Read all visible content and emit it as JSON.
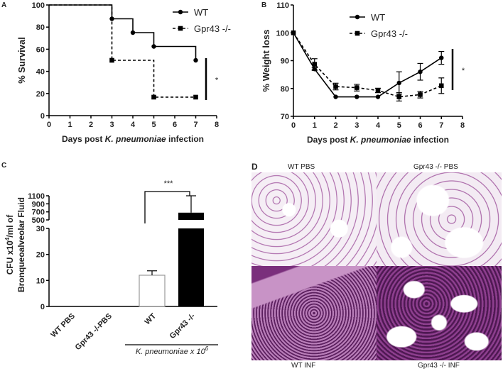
{
  "chart_data": [
    {
      "panel": "A",
      "type": "line",
      "step": true,
      "ylabel": "% Survival",
      "xlabel_parts": [
        "Days post ",
        "K. pneumoniae",
        " infection"
      ],
      "xlim": [
        0,
        8
      ],
      "ylim": [
        0,
        100
      ],
      "xticks": [
        0,
        1,
        2,
        3,
        4,
        5,
        6,
        7,
        8
      ],
      "yticks": [
        0,
        20,
        40,
        60,
        80,
        100
      ],
      "legend": "top-right",
      "significance": "*",
      "series": [
        {
          "name": "WT",
          "style": "solid",
          "marker": "circle",
          "x": [
            0,
            3,
            4,
            5,
            7
          ],
          "y": [
            100,
            87.5,
            75,
            62.5,
            50
          ],
          "markers_x": [
            3,
            4,
            5,
            7
          ]
        },
        {
          "name": "Gpr43 -/-",
          "style": "dashed",
          "marker": "square",
          "x": [
            0,
            3,
            5,
            7
          ],
          "y": [
            100,
            50,
            16.7,
            16.7
          ],
          "markers_x": [
            3,
            5,
            7
          ]
        }
      ]
    },
    {
      "panel": "B",
      "type": "line",
      "ylabel": "% Weight loss",
      "xlabel_parts": [
        "Days post ",
        "K. pneumoniae",
        " infection"
      ],
      "xlim": [
        0,
        8
      ],
      "ylim": [
        70,
        110
      ],
      "xticks": [
        0,
        1,
        2,
        3,
        4,
        5,
        6,
        7,
        8
      ],
      "yticks": [
        70,
        80,
        90,
        100,
        110
      ],
      "legend": "top",
      "significance": "*",
      "series": [
        {
          "name": "WT",
          "style": "solid",
          "marker": "circle",
          "x": [
            0,
            1,
            2,
            3,
            4,
            5,
            6,
            7
          ],
          "y": [
            100,
            87,
            77,
            77,
            77,
            82,
            86,
            91
          ],
          "err": [
            0,
            0.5,
            0,
            0,
            0,
            4,
            3,
            2.3
          ]
        },
        {
          "name": "Gpr43 -/-",
          "style": "dashed",
          "marker": "square",
          "x": [
            0,
            1,
            2,
            3,
            4,
            5,
            6,
            7
          ],
          "y": [
            100,
            88.7,
            80.7,
            80.3,
            79.3,
            77,
            77.8,
            81
          ],
          "err": [
            0,
            2,
            1.2,
            1.2,
            0.8,
            1.5,
            1.2,
            2.8
          ]
        }
      ]
    },
    {
      "panel": "C",
      "type": "bar",
      "broken_axis": true,
      "ylabel_line1": "CFU x10",
      "ylabel_sup": "4",
      "ylabel_rest": "/ml of",
      "ylabel_line2": "Bronqueoalveolar Fluid",
      "categories": [
        "WT PBS",
        "Gpr43 -/-PBS",
        "WT",
        "Gpr43 -/-"
      ],
      "values": [
        0,
        0,
        12,
        680
      ],
      "err": [
        0,
        0,
        1.7,
        420
      ],
      "colors": [
        "#ffffff",
        "#ffffff",
        "#ffffff",
        "#000000"
      ],
      "yticks_lower": [
        0,
        10,
        20,
        30
      ],
      "yticks_upper": [
        500,
        700,
        900,
        1100
      ],
      "group_label": "K. pneumoniae x 10",
      "group_label_sup": "6",
      "significance": "***"
    }
  ],
  "panel_labels": [
    "A",
    "B",
    "C",
    "D"
  ],
  "histology": {
    "top_left": "WT PBS",
    "top_right": "Gpr43 -/- PBS",
    "bottom_left": "WT INF",
    "bottom_right": "Gpr43 -/- INF"
  }
}
